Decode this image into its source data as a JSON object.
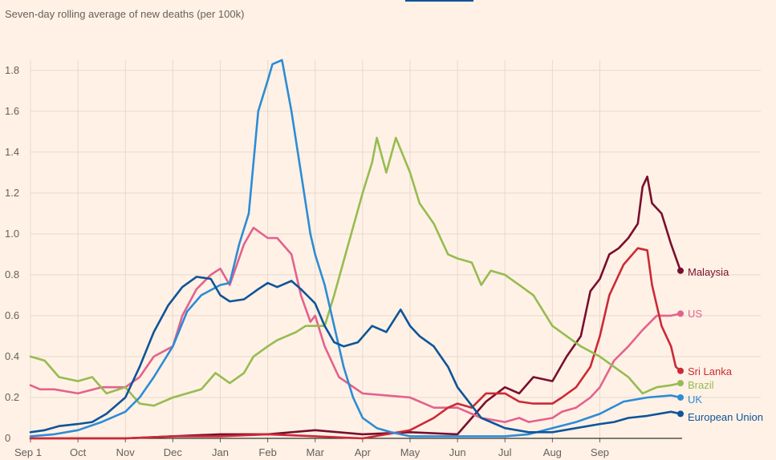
{
  "chart_data": {
    "type": "line",
    "title": "Seven-day rolling average of new deaths (per 100k)",
    "xlabel": "",
    "ylabel": "",
    "x_ticks": [
      "Sep 1",
      "Oct",
      "Nov",
      "Dec",
      "Jan",
      "Feb",
      "Mar",
      "Apr",
      "May",
      "Jun",
      "Jul",
      "Aug",
      "Sep"
    ],
    "ylim": [
      0,
      1.85
    ],
    "y_ticks": [
      0,
      0.2,
      0.4,
      0.6,
      0.8,
      1.0,
      1.2,
      1.4,
      1.6,
      1.8
    ],
    "y_tick_labels": [
      "0",
      "0.2",
      "0.4",
      "0.6",
      "0.8",
      "1.0",
      "1.2",
      "1.4",
      "1.6",
      "1.8"
    ],
    "grid": true,
    "legend": "direct labels at line ends (right)",
    "series": [
      {
        "name": "Malaysia",
        "color": "#7a0e2e",
        "values": [
          [
            0,
            0
          ],
          [
            1,
            0
          ],
          [
            2,
            0
          ],
          [
            3,
            0.01
          ],
          [
            4,
            0.02
          ],
          [
            5,
            0.02
          ],
          [
            6,
            0.04
          ],
          [
            7,
            0.02
          ],
          [
            8,
            0.03
          ],
          [
            9,
            0.02
          ],
          [
            9.3,
            0.1
          ],
          [
            9.6,
            0.18
          ],
          [
            10,
            0.25
          ],
          [
            10.3,
            0.22
          ],
          [
            10.6,
            0.3
          ],
          [
            11,
            0.28
          ],
          [
            11.3,
            0.4
          ],
          [
            11.6,
            0.5
          ],
          [
            11.8,
            0.72
          ],
          [
            12,
            0.78
          ],
          [
            12.2,
            0.9
          ],
          [
            12.4,
            0.93
          ],
          [
            12.6,
            0.98
          ],
          [
            12.8,
            1.05
          ],
          [
            12.9,
            1.23
          ],
          [
            13,
            1.28
          ],
          [
            13.1,
            1.15
          ],
          [
            13.3,
            1.1
          ],
          [
            13.5,
            0.95
          ],
          [
            13.7,
            0.82
          ]
        ]
      },
      {
        "name": "US",
        "color": "#e3628d",
        "values": [
          [
            0,
            0.26
          ],
          [
            0.2,
            0.24
          ],
          [
            0.5,
            0.24
          ],
          [
            1,
            0.22
          ],
          [
            1.5,
            0.25
          ],
          [
            2,
            0.25
          ],
          [
            2.3,
            0.3
          ],
          [
            2.6,
            0.4
          ],
          [
            3,
            0.45
          ],
          [
            3.2,
            0.6
          ],
          [
            3.5,
            0.73
          ],
          [
            3.8,
            0.8
          ],
          [
            4,
            0.83
          ],
          [
            4.2,
            0.75
          ],
          [
            4.5,
            0.95
          ],
          [
            4.7,
            1.03
          ],
          [
            5,
            0.98
          ],
          [
            5.2,
            0.98
          ],
          [
            5.5,
            0.9
          ],
          [
            5.7,
            0.7
          ],
          [
            5.9,
            0.57
          ],
          [
            6,
            0.6
          ],
          [
            6.2,
            0.45
          ],
          [
            6.5,
            0.3
          ],
          [
            7,
            0.22
          ],
          [
            7.5,
            0.21
          ],
          [
            8,
            0.2
          ],
          [
            8.5,
            0.15
          ],
          [
            9,
            0.15
          ],
          [
            9.5,
            0.1
          ],
          [
            10,
            0.08
          ],
          [
            10.3,
            0.1
          ],
          [
            10.5,
            0.08
          ],
          [
            11,
            0.1
          ],
          [
            11.2,
            0.13
          ],
          [
            11.5,
            0.15
          ],
          [
            11.8,
            0.2
          ],
          [
            12,
            0.25
          ],
          [
            12.3,
            0.38
          ],
          [
            12.6,
            0.45
          ],
          [
            12.9,
            0.53
          ],
          [
            13.2,
            0.6
          ],
          [
            13.5,
            0.6
          ],
          [
            13.7,
            0.61
          ]
        ]
      },
      {
        "name": "Sri Lanka",
        "color": "#cc2936",
        "values": [
          [
            0,
            0
          ],
          [
            2,
            0
          ],
          [
            3,
            0.01
          ],
          [
            4,
            0.01
          ],
          [
            5,
            0.02
          ],
          [
            6,
            0.01
          ],
          [
            7,
            0
          ],
          [
            8,
            0.04
          ],
          [
            8.5,
            0.1
          ],
          [
            8.8,
            0.15
          ],
          [
            9,
            0.17
          ],
          [
            9.3,
            0.15
          ],
          [
            9.6,
            0.22
          ],
          [
            10,
            0.22
          ],
          [
            10.3,
            0.18
          ],
          [
            10.6,
            0.17
          ],
          [
            11,
            0.17
          ],
          [
            11.2,
            0.2
          ],
          [
            11.5,
            0.25
          ],
          [
            11.8,
            0.35
          ],
          [
            12,
            0.5
          ],
          [
            12.2,
            0.7
          ],
          [
            12.5,
            0.85
          ],
          [
            12.8,
            0.93
          ],
          [
            13,
            0.92
          ],
          [
            13.1,
            0.75
          ],
          [
            13.3,
            0.55
          ],
          [
            13.5,
            0.45
          ],
          [
            13.6,
            0.35
          ],
          [
            13.7,
            0.33
          ]
        ]
      },
      {
        "name": "Brazil",
        "color": "#96bc51",
        "values": [
          [
            0,
            0.4
          ],
          [
            0.3,
            0.38
          ],
          [
            0.6,
            0.3
          ],
          [
            1,
            0.28
          ],
          [
            1.3,
            0.3
          ],
          [
            1.6,
            0.22
          ],
          [
            2,
            0.25
          ],
          [
            2.3,
            0.17
          ],
          [
            2.6,
            0.16
          ],
          [
            3,
            0.2
          ],
          [
            3.3,
            0.22
          ],
          [
            3.6,
            0.24
          ],
          [
            3.9,
            0.32
          ],
          [
            4.2,
            0.27
          ],
          [
            4.5,
            0.32
          ],
          [
            4.7,
            0.4
          ],
          [
            5,
            0.45
          ],
          [
            5.2,
            0.48
          ],
          [
            5.4,
            0.5
          ],
          [
            5.6,
            0.52
          ],
          [
            5.8,
            0.55
          ],
          [
            6,
            0.55
          ],
          [
            6.2,
            0.55
          ],
          [
            6.4,
            0.7
          ],
          [
            6.7,
            0.95
          ],
          [
            7,
            1.2
          ],
          [
            7.2,
            1.35
          ],
          [
            7.3,
            1.47
          ],
          [
            7.5,
            1.3
          ],
          [
            7.7,
            1.47
          ],
          [
            8,
            1.3
          ],
          [
            8.2,
            1.15
          ],
          [
            8.5,
            1.05
          ],
          [
            8.8,
            0.9
          ],
          [
            9,
            0.88
          ],
          [
            9.3,
            0.86
          ],
          [
            9.5,
            0.75
          ],
          [
            9.7,
            0.82
          ],
          [
            10,
            0.8
          ],
          [
            10.3,
            0.75
          ],
          [
            10.6,
            0.7
          ],
          [
            11,
            0.55
          ],
          [
            11.3,
            0.5
          ],
          [
            11.6,
            0.45
          ],
          [
            12,
            0.4
          ],
          [
            12.3,
            0.35
          ],
          [
            12.6,
            0.3
          ],
          [
            12.9,
            0.22
          ],
          [
            13.2,
            0.25
          ],
          [
            13.5,
            0.26
          ],
          [
            13.7,
            0.27
          ]
        ]
      },
      {
        "name": "UK",
        "color": "#2c8cd6",
        "values": [
          [
            0,
            0.01
          ],
          [
            0.5,
            0.02
          ],
          [
            1,
            0.04
          ],
          [
            1.5,
            0.08
          ],
          [
            2,
            0.13
          ],
          [
            2.3,
            0.2
          ],
          [
            2.6,
            0.3
          ],
          [
            3,
            0.45
          ],
          [
            3.3,
            0.62
          ],
          [
            3.6,
            0.7
          ],
          [
            4,
            0.75
          ],
          [
            4.2,
            0.76
          ],
          [
            4.4,
            0.95
          ],
          [
            4.6,
            1.1
          ],
          [
            4.7,
            1.35
          ],
          [
            4.8,
            1.6
          ],
          [
            5,
            1.75
          ],
          [
            5.1,
            1.83
          ],
          [
            5.3,
            1.85
          ],
          [
            5.5,
            1.6
          ],
          [
            5.7,
            1.3
          ],
          [
            5.9,
            1.0
          ],
          [
            6,
            0.9
          ],
          [
            6.2,
            0.75
          ],
          [
            6.4,
            0.55
          ],
          [
            6.6,
            0.35
          ],
          [
            6.8,
            0.2
          ],
          [
            7,
            0.1
          ],
          [
            7.3,
            0.05
          ],
          [
            7.6,
            0.03
          ],
          [
            8,
            0.01
          ],
          [
            9,
            0.01
          ],
          [
            10,
            0.01
          ],
          [
            10.5,
            0.02
          ],
          [
            11,
            0.05
          ],
          [
            11.5,
            0.08
          ],
          [
            12,
            0.12
          ],
          [
            12.5,
            0.18
          ],
          [
            13,
            0.2
          ],
          [
            13.5,
            0.21
          ],
          [
            13.7,
            0.2
          ]
        ]
      },
      {
        "name": "European Union",
        "color": "#0f5499",
        "values": [
          [
            0,
            0.03
          ],
          [
            0.3,
            0.04
          ],
          [
            0.6,
            0.06
          ],
          [
            1,
            0.07
          ],
          [
            1.3,
            0.08
          ],
          [
            1.6,
            0.12
          ],
          [
            2,
            0.2
          ],
          [
            2.3,
            0.35
          ],
          [
            2.6,
            0.52
          ],
          [
            2.9,
            0.65
          ],
          [
            3.2,
            0.74
          ],
          [
            3.5,
            0.79
          ],
          [
            3.8,
            0.78
          ],
          [
            4,
            0.7
          ],
          [
            4.2,
            0.67
          ],
          [
            4.5,
            0.68
          ],
          [
            4.8,
            0.73
          ],
          [
            5,
            0.76
          ],
          [
            5.2,
            0.74
          ],
          [
            5.5,
            0.77
          ],
          [
            5.7,
            0.73
          ],
          [
            6,
            0.66
          ],
          [
            6.2,
            0.55
          ],
          [
            6.4,
            0.47
          ],
          [
            6.6,
            0.45
          ],
          [
            6.9,
            0.47
          ],
          [
            7.2,
            0.55
          ],
          [
            7.5,
            0.52
          ],
          [
            7.8,
            0.63
          ],
          [
            8,
            0.55
          ],
          [
            8.2,
            0.5
          ],
          [
            8.5,
            0.45
          ],
          [
            8.8,
            0.35
          ],
          [
            9,
            0.25
          ],
          [
            9.3,
            0.16
          ],
          [
            9.5,
            0.1
          ],
          [
            10,
            0.05
          ],
          [
            10.5,
            0.03
          ],
          [
            11,
            0.03
          ],
          [
            11.5,
            0.05
          ],
          [
            12,
            0.07
          ],
          [
            12.3,
            0.08
          ],
          [
            12.6,
            0.1
          ],
          [
            13,
            0.11
          ],
          [
            13.5,
            0.13
          ],
          [
            13.7,
            0.12
          ]
        ]
      }
    ]
  }
}
